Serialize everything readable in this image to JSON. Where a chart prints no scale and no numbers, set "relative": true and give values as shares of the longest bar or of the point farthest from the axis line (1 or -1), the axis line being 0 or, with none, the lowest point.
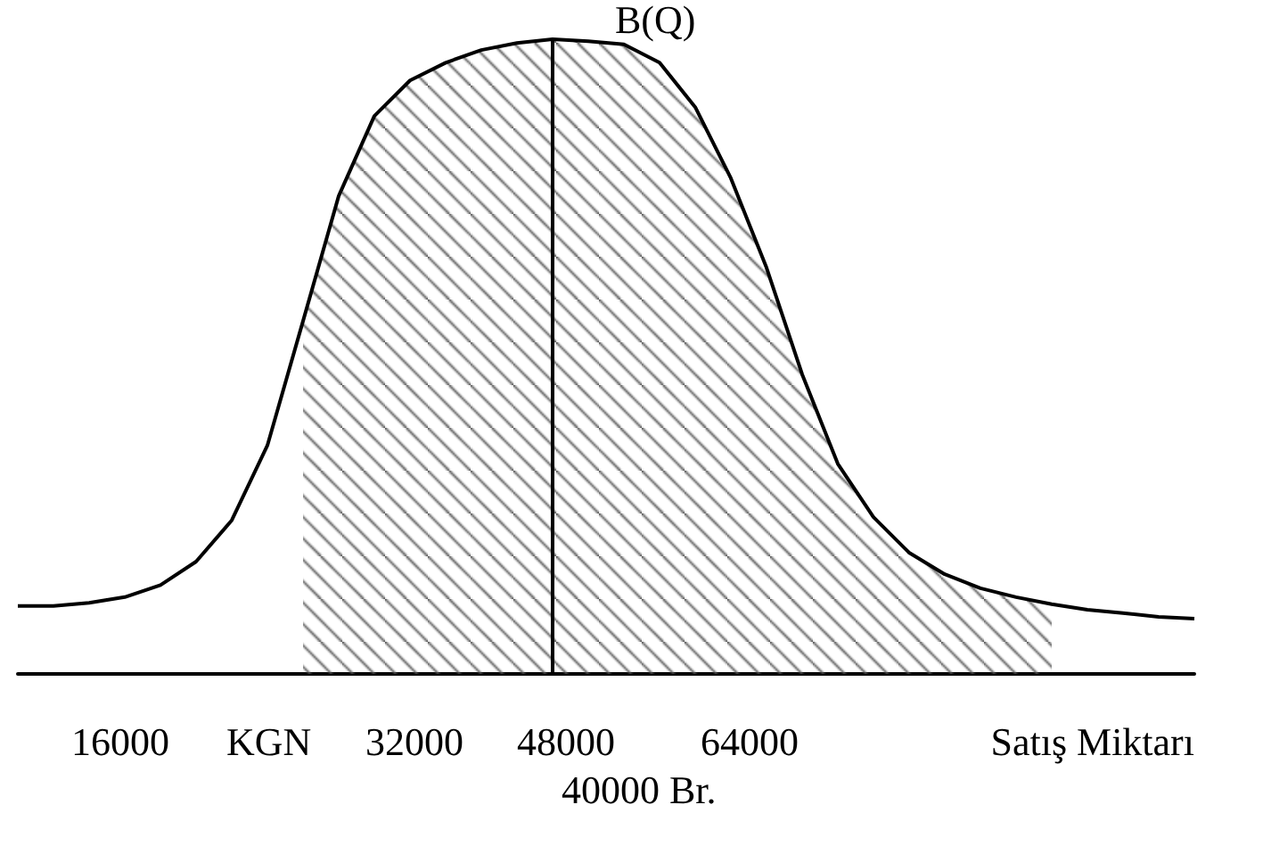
{
  "chart_data": {
    "type": "line",
    "relative": true,
    "xlabel": "Satış Miktarı",
    "categories": [
      null,
      null,
      null,
      null,
      null,
      null,
      null,
      null,
      null,
      null,
      null,
      null,
      null,
      null,
      null,
      null,
      null,
      null,
      null,
      null,
      null,
      null,
      null,
      null,
      null,
      null,
      null,
      null,
      null,
      null,
      null,
      null,
      null,
      null
    ],
    "series": [
      {
        "color": "#000000",
        "values": [
          0.107,
          0.107,
          0.112,
          0.121,
          0.14,
          0.177,
          0.242,
          0.36,
          0.556,
          0.753,
          0.879,
          0.935,
          0.963,
          0.983,
          0.994,
          1,
          0.997,
          0.992,
          0.963,
          0.893,
          0.781,
          0.64,
          0.472,
          0.331,
          0.247,
          0.191,
          0.157,
          0.135,
          0.121,
          0.11,
          0.101,
          0.096,
          0.09,
          0.087
        ]
      },
      {
        "type": "area",
        "color": "#555555",
        "values": [
          null,
          null,
          null,
          null,
          null,
          null,
          null,
          null,
          0.556,
          0.753,
          0.879,
          0.935,
          0.963,
          0.983,
          0.994,
          1,
          0.997,
          0.992,
          0.963,
          0.893,
          0.781,
          0.64,
          0.472,
          0.331,
          0.247,
          0.191,
          0.157,
          0.135,
          0.121,
          0.11,
          null,
          null,
          null,
          null
        ]
      }
    ],
    "annotations": [
      "16000",
      "KGN",
      "32000",
      "48000",
      "64000",
      "40000 Br.",
      "B(Q)"
    ],
    "grid": false,
    "marker": "none"
  }
}
